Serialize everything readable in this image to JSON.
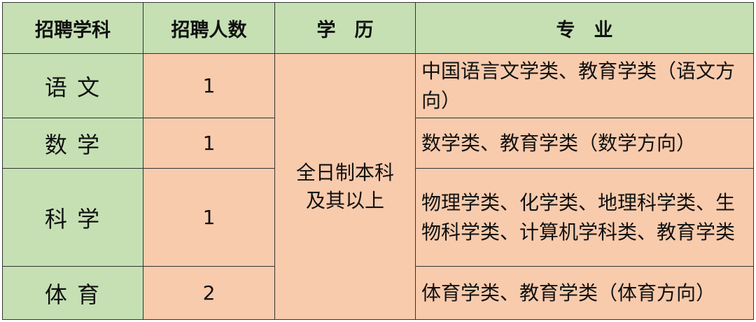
{
  "headers": [
    "招聘学科",
    "招聘人数",
    "学　历",
    "专　业"
  ],
  "education": [
    "全日制本科",
    "及其以上"
  ],
  "rows": [
    {
      "subject": "语 文",
      "count": "1",
      "major": "中国语言文学类、教育学类（语文方向）"
    },
    {
      "subject": "数 学",
      "count": "1",
      "major": "数学类、教育学类（数学方向）"
    },
    {
      "subject": "科 学",
      "count": "1",
      "major": "物理学类、化学类、地理科学类、生物科学类、计算机学科类、教育学类"
    },
    {
      "subject": "体 育",
      "count": "2",
      "major": "体育学类、教育学类（体育方向）"
    }
  ],
  "colors": {
    "header_bg": "#C6E0B4",
    "cell_bg": "#F8CBAD",
    "border": "#333333"
  }
}
